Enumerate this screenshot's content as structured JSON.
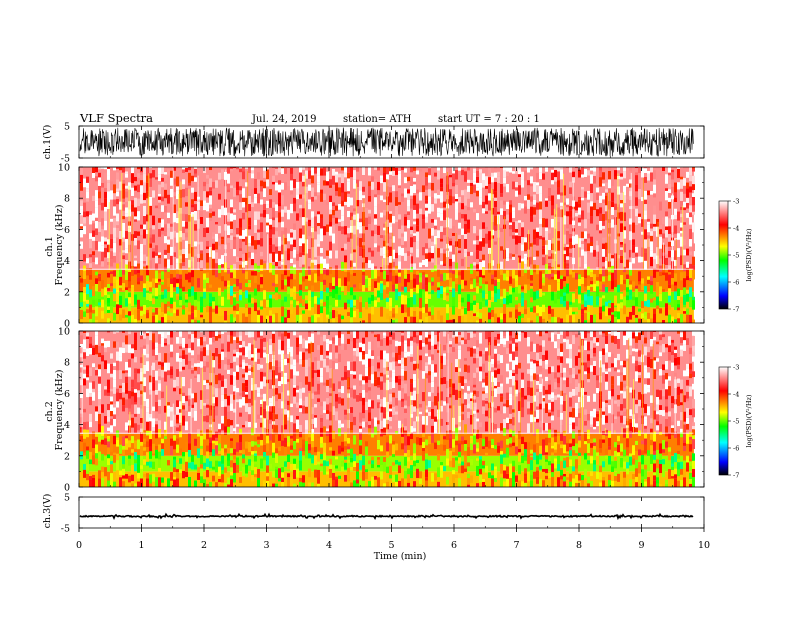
{
  "chart_data": {
    "type": "heatmap",
    "title": "VLF  Spectra",
    "header": {
      "date": "Jul.  24,  2019",
      "station": "station= ATH",
      "start_ut": "start  UT  =    7  : 20 : 1"
    },
    "xlabel": "Time  (min)",
    "xlim": [
      0,
      10
    ],
    "x_ticks": [
      "0",
      "1",
      "2",
      "3",
      "4",
      "5",
      "6",
      "7",
      "8",
      "9",
      "10"
    ],
    "data_end_min": 9.83,
    "panels": [
      {
        "id": "ch1-waveform",
        "kind": "waveform",
        "ylabel": "ch.1(V)",
        "ylim": [
          -5,
          5
        ],
        "y_ticks": [
          "5",
          "-5"
        ],
        "amplitude_v": [
          -4.5,
          4.5
        ]
      },
      {
        "id": "ch1-spectrogram",
        "kind": "spectrogram",
        "ylabel": "ch.1\nFrequency  (kHz)",
        "ylim": [
          0,
          10
        ],
        "y_ticks": [
          "0",
          "2",
          "4",
          "6",
          "8",
          "10"
        ],
        "bands_khz": [
          {
            "from": 0,
            "to": 1,
            "log_psd": -4.5
          },
          {
            "from": 1,
            "to": 2,
            "log_psd": -5.0
          },
          {
            "from": 2,
            "to": 3.4,
            "log_psd": -4.3
          },
          {
            "from": 3.4,
            "to": 10,
            "log_psd": -3.4
          }
        ],
        "colorbar": {
          "label": "log(PSD)(V²/Hz)",
          "range": [
            -7,
            -3
          ],
          "ticks": [
            "-3",
            "-4",
            "-5",
            "-6",
            "-7"
          ]
        }
      },
      {
        "id": "ch2-spectrogram",
        "kind": "spectrogram",
        "ylabel": "ch.2\nFrequency  (kHz)",
        "ylim": [
          0,
          10
        ],
        "y_ticks": [
          "0",
          "2",
          "4",
          "6",
          "8",
          "10"
        ],
        "bands_khz": [
          {
            "from": 0,
            "to": 1,
            "log_psd": -4.5
          },
          {
            "from": 1,
            "to": 2,
            "log_psd": -4.9
          },
          {
            "from": 2,
            "to": 3.4,
            "log_psd": -4.3
          },
          {
            "from": 3.4,
            "to": 10,
            "log_psd": -3.4
          }
        ],
        "colorbar": {
          "label": "log(PSD)(V²/Hz)",
          "range": [
            -7,
            -3
          ],
          "ticks": [
            "-3",
            "-4",
            "-5",
            "-6",
            "-7"
          ]
        }
      },
      {
        "id": "ch3-waveform",
        "kind": "waveform",
        "ylabel": "ch.3(V)",
        "ylim": [
          -5,
          5
        ],
        "y_ticks": [
          "5",
          "-5"
        ],
        "amplitude_v": [
          -1.6,
          -0.8
        ]
      }
    ],
    "colors": {
      "background": "#ffffff",
      "axis": "#000000",
      "colormap": [
        "#000000",
        "#0000ff",
        "#00ffff",
        "#00ff00",
        "#ffff00",
        "#ff0000",
        "#ffffff"
      ]
    }
  }
}
